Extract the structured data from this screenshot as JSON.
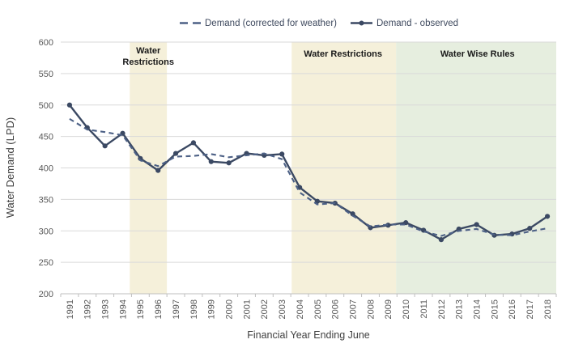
{
  "chart_data": {
    "type": "line",
    "title": "",
    "xlabel": "Financial Year Ending June",
    "ylabel": "Water Demand (LPD)",
    "x": [
      1991,
      1992,
      1993,
      1994,
      1995,
      1996,
      1997,
      1998,
      1999,
      2000,
      2001,
      2002,
      2003,
      2004,
      2005,
      2006,
      2007,
      2008,
      2009,
      2010,
      2011,
      2012,
      2013,
      2014,
      2015,
      2016,
      2017,
      2018
    ],
    "ylim": [
      200,
      600
    ],
    "ytick_step": 50,
    "grid": true,
    "legend_position": "top-center",
    "series": [
      {
        "name": "Demand (corrected for weather)",
        "style": "dashed",
        "marker": "none",
        "color": "#4d6186",
        "values": [
          478,
          461,
          457,
          452,
          412,
          403,
          418,
          419,
          422,
          417,
          420,
          423,
          414,
          361,
          342,
          344,
          324,
          307,
          310,
          310,
          299,
          292,
          300,
          303,
          294,
          293,
          299,
          304
        ]
      },
      {
        "name": "Demand - observed",
        "style": "solid",
        "marker": "circle",
        "color": "#3b4963",
        "values": [
          500,
          464,
          435,
          455,
          415,
          396,
          423,
          440,
          410,
          408,
          423,
          420,
          422,
          369,
          347,
          344,
          327,
          305,
          309,
          313,
          301,
          286,
          303,
          310,
          293,
          295,
          304,
          323
        ]
      }
    ],
    "annotation_bands": [
      {
        "label_lines": [
          "Water",
          "Restrictions"
        ],
        "from_year": 1994.4,
        "to_year": 1996.5,
        "color": "#f5f0da",
        "label_year": 1995.45,
        "label_baselines": [
          66,
          80
        ]
      },
      {
        "label_lines": [
          "Water Restrictions"
        ],
        "from_year": 2003.55,
        "to_year": 2009.45,
        "color": "#f5f0da",
        "label_year": 2006.45,
        "label_baselines": [
          70
        ]
      },
      {
        "label_lines": [
          "Water Wise Rules"
        ],
        "from_year": 2009.45,
        "to_year": 2018.5,
        "color": "#e6eedf",
        "label_year": 2014.05,
        "label_baselines": [
          70
        ]
      }
    ],
    "colors": {
      "grid": "#d9d9d9",
      "axis": "#bfbfbf",
      "tick_text": "#595959",
      "axis_title_text": "#404040",
      "band_label_text": "#1a1a1a",
      "legend_text": "#3f4a5f"
    }
  }
}
